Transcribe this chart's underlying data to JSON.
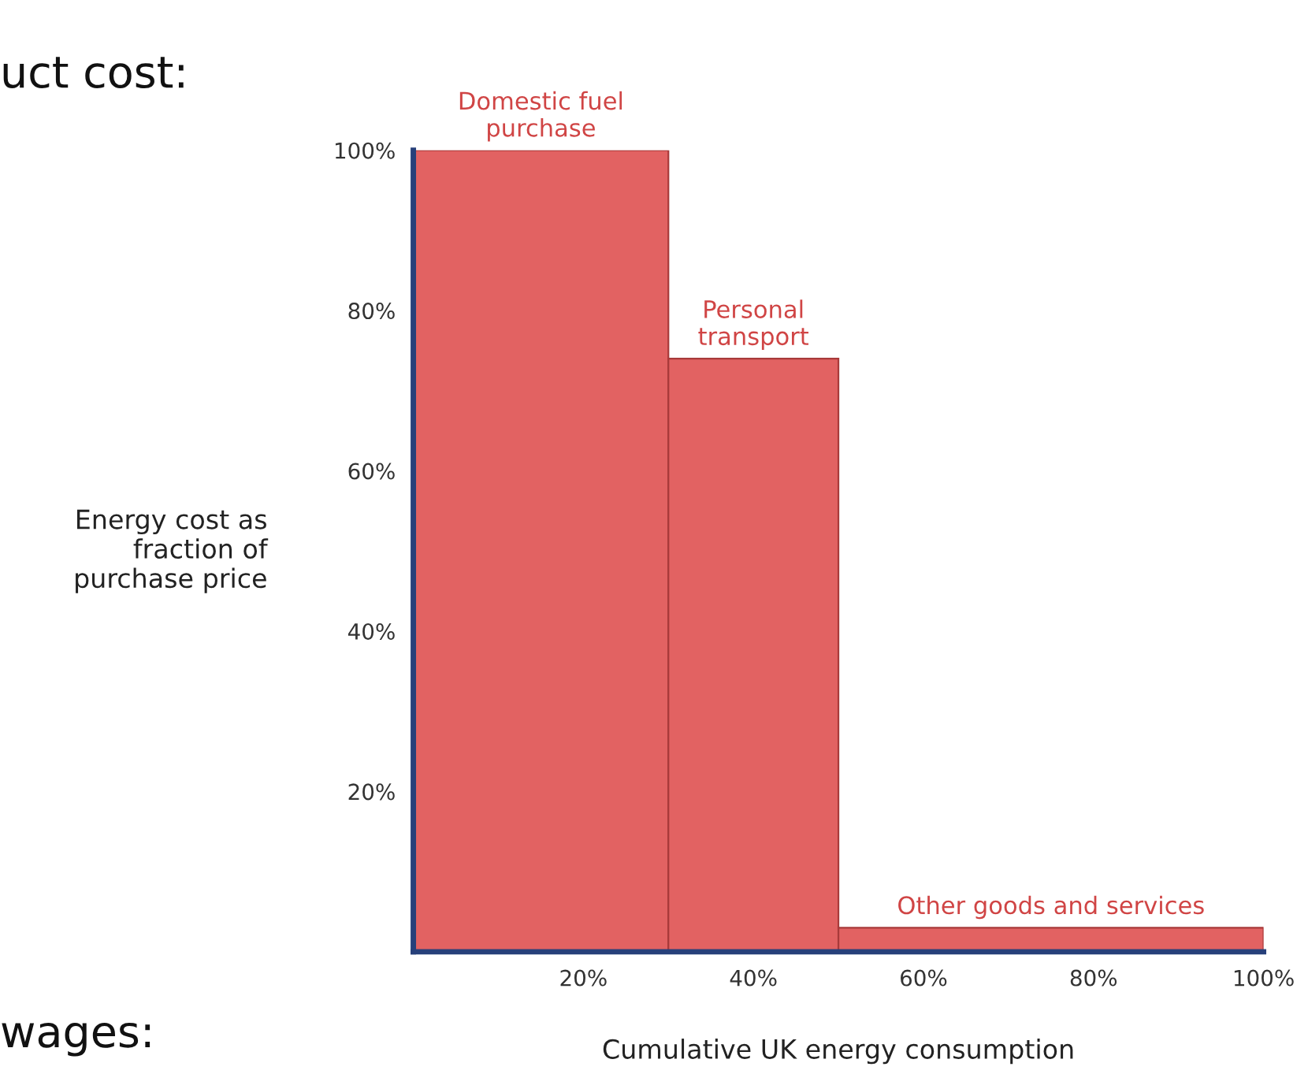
{
  "chart_data": {
    "type": "histogram",
    "xlabel": "Cumulative UK energy consumption",
    "ylabel": "Energy cost as\nfraction of\npurchase price",
    "bins": [
      0,
      30,
      50,
      100
    ],
    "values": [
      100,
      74,
      3
    ],
    "color": "#e26262",
    "xlim": [
      0,
      100
    ],
    "ylim": [
      0,
      100
    ],
    "xticks": [
      {
        "value": 20,
        "label": "20%"
      },
      {
        "value": 40,
        "label": "40%"
      },
      {
        "value": 60,
        "label": "60%"
      },
      {
        "value": 80,
        "label": "80%"
      },
      {
        "value": 100,
        "label": "100%"
      }
    ],
    "yticks": [
      {
        "value": 20,
        "label": "20%"
      },
      {
        "value": 40,
        "label": "40%"
      },
      {
        "value": 60,
        "label": "60%"
      },
      {
        "value": 80,
        "label": "80%"
      },
      {
        "value": 100,
        "label": "100%"
      }
    ],
    "grid": false,
    "annotations": [
      {
        "text": "Domestic fuel\npurchase",
        "x": 15,
        "y": 100
      },
      {
        "text": "Personal\ntransport",
        "x": 40,
        "y": 74
      },
      {
        "text": "Other goods and services",
        "x": 75,
        "y": 3
      },
      "uct cost:",
      "wages:"
    ]
  }
}
